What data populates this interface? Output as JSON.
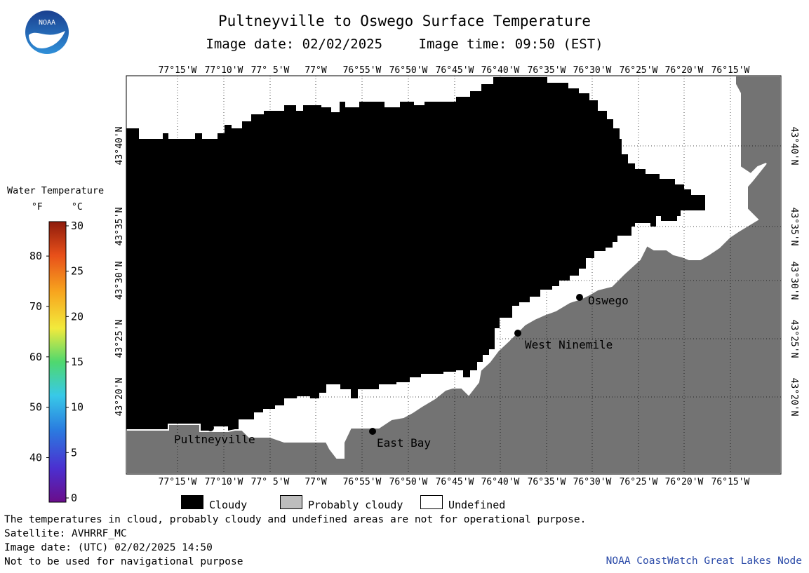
{
  "header": {
    "title": "Pultneyville to Oswego Surface Temperature",
    "image_date_label": "Image date: 02/02/2025",
    "image_time_label": "Image time: 09:50 (EST)"
  },
  "logo": {
    "text": "NOAA",
    "icon": "noaa-seagull-logo"
  },
  "colorbar": {
    "title": "Water Temperature",
    "unit_f": "°F",
    "unit_c": "°C",
    "f_ticks": [
      "40",
      "50",
      "60",
      "70",
      "80"
    ],
    "c_ticks": [
      "0",
      "5",
      "10",
      "15",
      "20",
      "25",
      "30"
    ]
  },
  "map": {
    "lon_labels": [
      "77°15'W",
      "77°10'W",
      "77° 5'W",
      "77°W",
      "76°55'W",
      "76°50'W",
      "76°45'W",
      "76°40'W",
      "76°35'W",
      "76°30'W",
      "76°25'W",
      "76°20'W",
      "76°15'W"
    ],
    "lat_labels": [
      "43°40'N",
      "43°35'N",
      "43°30'N",
      "43°25'N",
      "43°20'N"
    ],
    "places": [
      "Pultneyville",
      "East Bay",
      "West Ninemile",
      "Oswego"
    ],
    "colors": {
      "cloudy": "#000000",
      "land": "#737373",
      "undefined": "#ffffff"
    }
  },
  "legend": {
    "items": [
      {
        "label": "Cloudy",
        "color": "#000000"
      },
      {
        "label": "Probably cloudy",
        "color": "#bdbdbd"
      },
      {
        "label": "Undefined",
        "color": "#ffffff"
      }
    ]
  },
  "notes": {
    "line1": "The temperatures in cloud, probably cloudy and undefined areas are not for operational purpose.",
    "line2": "Satellite: AVHRRF_MC",
    "line3": "Image date: (UTC) 02/02/2025  14:50",
    "line4": "Not to be used for navigational purpose"
  },
  "credit": "NOAA CoastWatch Great Lakes Node"
}
